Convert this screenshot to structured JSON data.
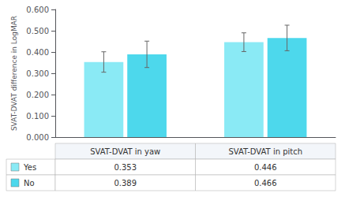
{
  "chart_data": {
    "type": "bar",
    "ylabel": "SVAT-DVAT difference in LogMAR",
    "categories": [
      "SVAT-DVAT in yaw",
      "SVAT-DVAT in pitch"
    ],
    "series": [
      {
        "name": "Yes",
        "color": "#8aeaf5",
        "values": [
          0.353,
          0.446
        ],
        "errors": [
          0.048,
          0.044
        ]
      },
      {
        "name": "No",
        "color": "#4dd8ec",
        "values": [
          0.389,
          0.466
        ],
        "errors": [
          0.062,
          0.06
        ]
      }
    ],
    "ylim": [
      0.0,
      0.6
    ],
    "yticks": [
      {
        "value": 0.0,
        "label": "0.000"
      },
      {
        "value": 0.1,
        "label": "0.100"
      },
      {
        "value": 0.2,
        "label": "0.200"
      },
      {
        "value": 0.3,
        "label": "0.300"
      },
      {
        "value": 0.4,
        "label": "0.400"
      },
      {
        "value": 0.5,
        "label": "0.500"
      },
      {
        "value": 0.6,
        "label": "0.600"
      }
    ],
    "grid": false,
    "tick_labels": "y"
  }
}
